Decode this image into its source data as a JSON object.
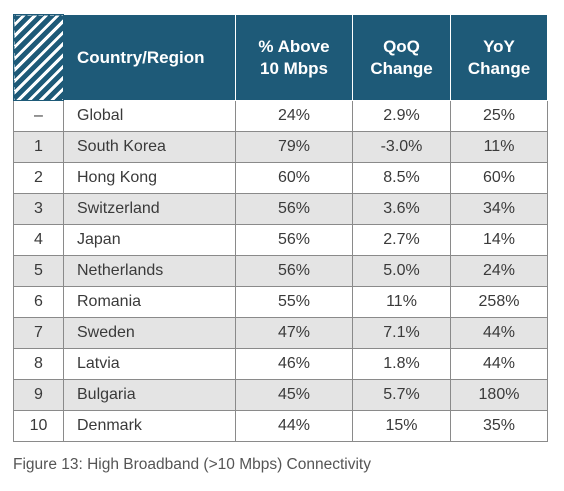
{
  "table": {
    "headers": {
      "country": "Country/Region",
      "above": [
        "% Above",
        "10 Mbps"
      ],
      "qoq": [
        "QoQ",
        "Change"
      ],
      "yoy": [
        "YoY",
        "Change"
      ]
    },
    "rows": [
      {
        "rank": "–",
        "name": "Global",
        "above": "24%",
        "qoq": "2.9%",
        "yoy": "25%"
      },
      {
        "rank": "1",
        "name": "South Korea",
        "above": "79%",
        "qoq": "-3.0%",
        "yoy": "11%"
      },
      {
        "rank": "2",
        "name": "Hong Kong",
        "above": "60%",
        "qoq": "8.5%",
        "yoy": "60%"
      },
      {
        "rank": "3",
        "name": "Switzerland",
        "above": "56%",
        "qoq": "3.6%",
        "yoy": "34%"
      },
      {
        "rank": "4",
        "name": "Japan",
        "above": "56%",
        "qoq": "2.7%",
        "yoy": "14%"
      },
      {
        "rank": "5",
        "name": "Netherlands",
        "above": "56%",
        "qoq": "5.0%",
        "yoy": "24%"
      },
      {
        "rank": "6",
        "name": "Romania",
        "above": "55%",
        "qoq": "11%",
        "yoy": "258%"
      },
      {
        "rank": "7",
        "name": "Sweden",
        "above": "47%",
        "qoq": "7.1%",
        "yoy": "44%"
      },
      {
        "rank": "8",
        "name": "Latvia",
        "above": "46%",
        "qoq": "1.8%",
        "yoy": "44%"
      },
      {
        "rank": "9",
        "name": "Bulgaria",
        "above": "45%",
        "qoq": "5.7%",
        "yoy": "180%"
      },
      {
        "rank": "10",
        "name": "Denmark",
        "above": "44%",
        "qoq": "15%",
        "yoy": "35%"
      }
    ]
  },
  "caption": "Figure 13: High Broadband (>10 Mbps) Connectivity",
  "colors": {
    "header_bg": "#1e5a78",
    "stripe": "#e4e4e4"
  }
}
